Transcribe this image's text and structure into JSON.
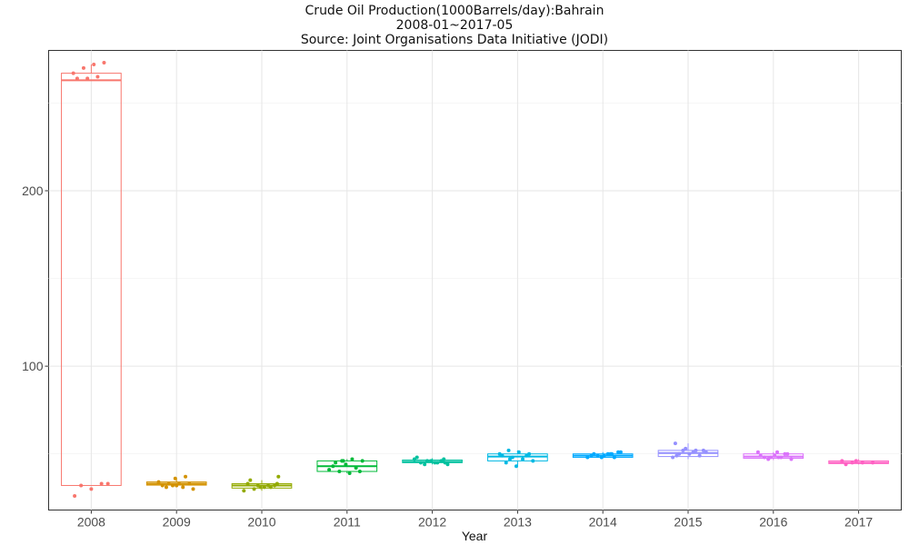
{
  "chart_data": {
    "type": "box",
    "title": "Crude Oil Production(1000Barrels/day):Bahrain",
    "subtitle": "2008-01~2017-05",
    "source": "Source: Joint Organisations Data Initiative (JODI)",
    "xlabel": "Year",
    "ylabel": "",
    "ylim": [
      18,
      280
    ],
    "y_ticks": [
      100,
      200
    ],
    "grid": true,
    "categories": [
      "2008",
      "2009",
      "2010",
      "2011",
      "2012",
      "2013",
      "2014",
      "2015",
      "2016",
      "2017"
    ],
    "colors": [
      "#F8766D",
      "#D39200",
      "#93AA00",
      "#00BA38",
      "#00C19F",
      "#00B9E3",
      "#00A9FF",
      "#9590FF",
      "#DB72FB",
      "#FF61C3"
    ],
    "boxes": [
      {
        "q1": 32,
        "median": 263,
        "q3": 267,
        "whisker_low": 32,
        "whisker_high": 272
      },
      {
        "q1": 32.2,
        "median": 33,
        "q3": 34,
        "whisker_low": 31,
        "whisker_high": 36
      },
      {
        "q1": 30.5,
        "median": 32,
        "q3": 33,
        "whisker_low": 29,
        "whisker_high": 35
      },
      {
        "q1": 40,
        "median": 43,
        "q3": 46,
        "whisker_low": 39,
        "whisker_high": 47
      },
      {
        "q1": 45,
        "median": 45.5,
        "q3": 46.5,
        "whisker_low": 44,
        "whisker_high": 47.5
      },
      {
        "q1": 46,
        "median": 48.5,
        "q3": 50,
        "whisker_low": 43,
        "whisker_high": 52
      },
      {
        "q1": 48,
        "median": 49,
        "q3": 50,
        "whisker_low": 47.5,
        "whisker_high": 51
      },
      {
        "q1": 48.5,
        "median": 50.5,
        "q3": 52,
        "whisker_low": 47,
        "whisker_high": 56
      },
      {
        "q1": 47.5,
        "median": 48.5,
        "q3": 50,
        "whisker_low": 46.5,
        "whisker_high": 51
      },
      {
        "q1": 44.5,
        "median": 45,
        "q3": 46,
        "whisker_low": 44,
        "whisker_high": 47
      }
    ],
    "points": [
      [
        267,
        270,
        272,
        273,
        264,
        264,
        265,
        33,
        32,
        30,
        33,
        26
      ],
      [
        36,
        37,
        34,
        33,
        33,
        33,
        32,
        32,
        31,
        30,
        31,
        32
      ],
      [
        33,
        35,
        31,
        31,
        29,
        30,
        31,
        32,
        33,
        32,
        32,
        37
      ],
      [
        46,
        47,
        46,
        45,
        44,
        42,
        41,
        40,
        39,
        40,
        43,
        46
      ],
      [
        47,
        48,
        46,
        45,
        44,
        45,
        46,
        46,
        47,
        44,
        45,
        45
      ],
      [
        52,
        51,
        50,
        49,
        48,
        47,
        46,
        45,
        43,
        49,
        50,
        47
      ],
      [
        50,
        51,
        50,
        49,
        48,
        48,
        49,
        50,
        51,
        49,
        48,
        50
      ],
      [
        56,
        53,
        52,
        51,
        50,
        50,
        49,
        48,
        52,
        51,
        52,
        49
      ],
      [
        51,
        50,
        49,
        48,
        48,
        47,
        48,
        49,
        50,
        51,
        47,
        48
      ],
      [
        46,
        45,
        45,
        45,
        44,
        46
      ]
    ]
  }
}
